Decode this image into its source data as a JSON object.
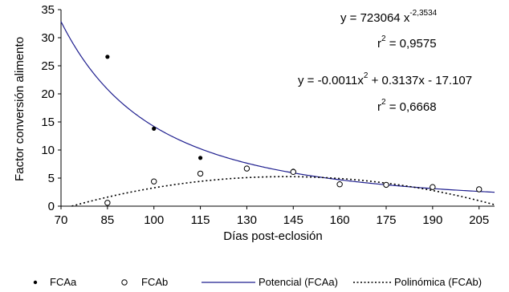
{
  "chart_data": {
    "type": "scatter",
    "xlabel": "Días post-eclosión",
    "ylabel": "Factor conversión alimento",
    "xlim": [
      70,
      210
    ],
    "ylim": [
      0,
      35
    ],
    "x_ticks": [
      70,
      85,
      100,
      115,
      130,
      145,
      160,
      175,
      190,
      205
    ],
    "y_ticks": [
      0,
      5,
      10,
      15,
      20,
      25,
      30,
      35
    ],
    "grid": false,
    "legend_position": "bottom",
    "series": [
      {
        "name": "FCAa",
        "marker": "filled-circle",
        "color": "#000000",
        "points": [
          [
            85,
            26.6
          ],
          [
            100,
            13.8
          ],
          [
            115,
            8.6
          ],
          [
            130,
            6.7
          ],
          [
            145,
            6.3
          ],
          [
            160,
            3.8
          ],
          [
            175,
            3.7
          ],
          [
            190,
            3.5
          ],
          [
            205,
            2.9
          ]
        ]
      },
      {
        "name": "FCAb",
        "marker": "open-circle",
        "color": "#000000",
        "points": [
          [
            85,
            0.6
          ],
          [
            100,
            4.4
          ],
          [
            115,
            5.8
          ],
          [
            130,
            6.7
          ],
          [
            145,
            6.1
          ],
          [
            160,
            3.9
          ],
          [
            175,
            3.8
          ],
          [
            190,
            3.4
          ],
          [
            205,
            3.0
          ]
        ]
      }
    ],
    "trendlines": [
      {
        "name": "Potencial (FCAa)",
        "kind": "power",
        "a": 723064,
        "b": -2.3534,
        "color": "#1f1f8f",
        "style": "solid"
      },
      {
        "name": "Polinómica (FCAb)",
        "kind": "poly2",
        "c2": -0.0011,
        "c1": 0.3137,
        "c0": -17.107,
        "color": "#000000",
        "style": "dotted"
      }
    ],
    "annotations": {
      "eq1_base": "y = 723064 x",
      "eq1_exp": "-2,3534",
      "r2_1_label": "r",
      "r2_1_value": " = 0,9575",
      "eq2": "y = -0.0011x",
      "eq2_rest": " + 0.3137x - 17.107",
      "r2_2_label": "r",
      "r2_2_value": " = 0,6668",
      "square": "2"
    }
  }
}
